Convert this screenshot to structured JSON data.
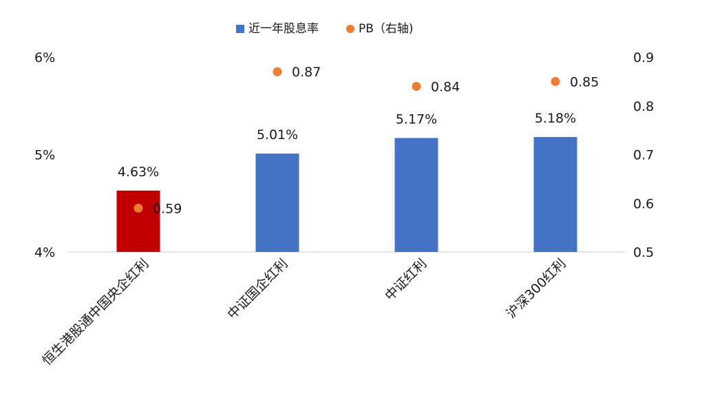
{
  "chart_data": {
    "type": "bar",
    "categories": [
      "恒生港股通中国央企红利",
      "中证国企红利",
      "中证红利",
      "沪深300红利"
    ],
    "series": [
      {
        "name": "近一年股息率",
        "axis": "left",
        "kind": "bar",
        "values": [
          4.63,
          5.01,
          5.17,
          5.18
        ],
        "labels": [
          "4.63%",
          "5.01%",
          "5.17%",
          "5.18%"
        ],
        "color": "#4472C4",
        "point_colors": [
          "#C00000",
          "#4472C4",
          "#4472C4",
          "#4472C4"
        ]
      },
      {
        "name": "PB（右轴)",
        "axis": "right",
        "kind": "scatter",
        "values": [
          0.59,
          0.87,
          0.84,
          0.85
        ],
        "labels": [
          "0.59",
          "0.87",
          "0.84",
          "0.85"
        ],
        "color": "#ED7D31"
      }
    ],
    "y_left": {
      "min": 4,
      "max": 6,
      "ticks": [
        "4%",
        "5%",
        "6%"
      ],
      "tick_values": [
        4,
        5,
        6
      ]
    },
    "y_right": {
      "min": 0.5,
      "max": 0.9,
      "ticks": [
        "0.5",
        "0.6",
        "0.7",
        "0.8",
        "0.9"
      ],
      "tick_values": [
        0.5,
        0.6,
        0.7,
        0.8,
        0.9
      ]
    },
    "legend_position": "top-center",
    "grid": false
  }
}
